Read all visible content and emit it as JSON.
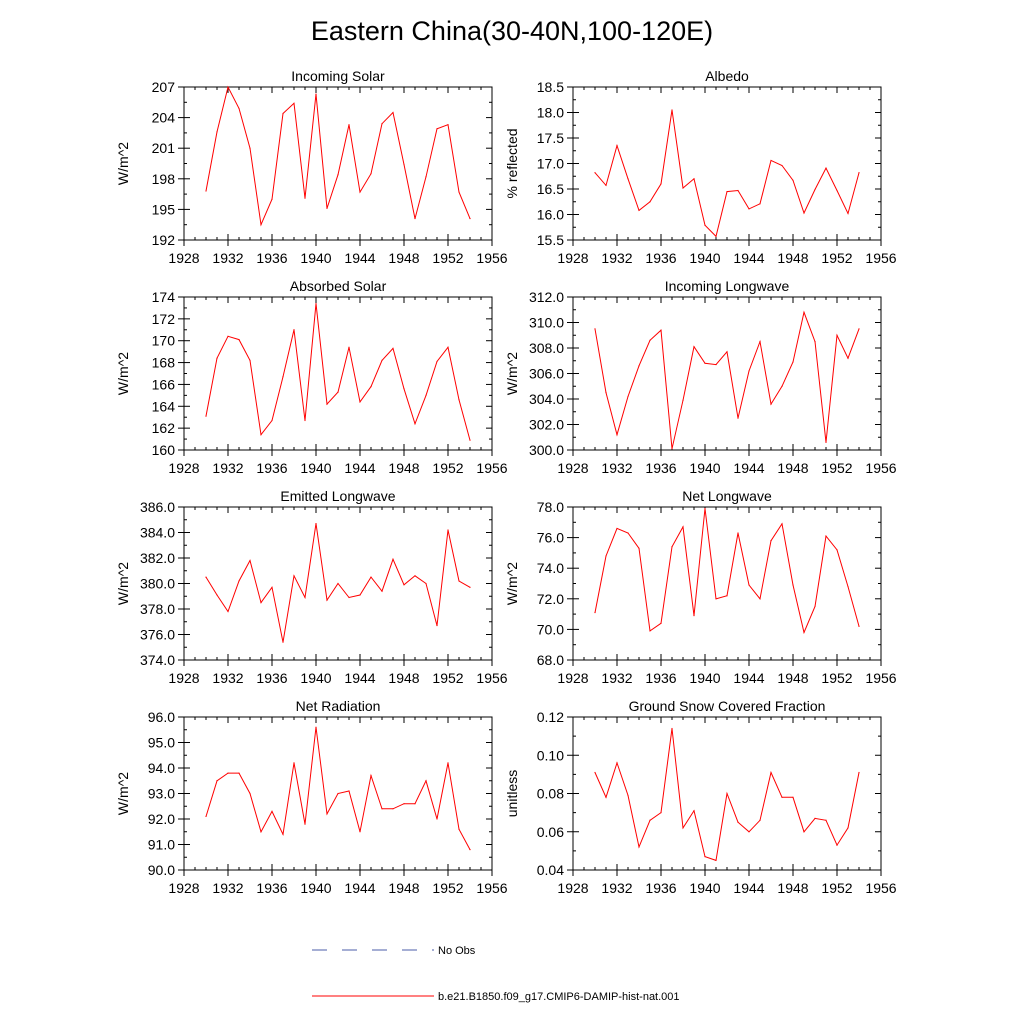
{
  "figure": {
    "title": "Eastern China(30-40N,100-120E)"
  },
  "legend": [
    {
      "label": "No Obs",
      "color": "#4b5ea8",
      "dash": true
    },
    {
      "label": "b.e21.B1850.f09_g17.CMIP6-DAMIP-hist-nat.001",
      "color": "#ff0000",
      "dash": false
    }
  ],
  "chart_data": [
    {
      "type": "line",
      "title": "Incoming Solar",
      "ylabel": "W/m^2",
      "xlim": [
        1928,
        1956
      ],
      "xticks": [
        1928,
        1932,
        1936,
        1940,
        1944,
        1948,
        1952,
        1956
      ],
      "ylim": [
        192,
        207
      ],
      "yticks": [
        192,
        195,
        198,
        201,
        204,
        207
      ],
      "ydec": 0,
      "series": [
        {
          "color": "#ff0000",
          "x": [
            1930,
            1931,
            1932,
            1933,
            1934,
            1935,
            1936,
            1937,
            1938,
            1939,
            1940,
            1941,
            1942,
            1943,
            1944,
            1945,
            1946,
            1947,
            1948,
            1949,
            1950,
            1951,
            1952,
            1953,
            1954
          ],
          "y": [
            196.8,
            202.6,
            207.0,
            204.9,
            201.0,
            193.5,
            196.0,
            204.4,
            205.4,
            196.1,
            206.3,
            195.1,
            198.4,
            203.3,
            196.7,
            198.5,
            203.4,
            204.5,
            199.4,
            194.1,
            198.2,
            202.9,
            203.3,
            196.7,
            194.1
          ]
        }
      ]
    },
    {
      "type": "line",
      "title": "Albedo",
      "ylabel": "% reflected",
      "xlim": [
        1928,
        1956
      ],
      "xticks": [
        1928,
        1932,
        1936,
        1940,
        1944,
        1948,
        1952,
        1956
      ],
      "ylim": [
        15.5,
        18.5
      ],
      "yticks": [
        15.5,
        16.0,
        16.5,
        17.0,
        17.5,
        18.0,
        18.5
      ],
      "ydec": 1,
      "series": [
        {
          "color": "#ff0000",
          "x": [
            1930,
            1931,
            1932,
            1933,
            1934,
            1935,
            1936,
            1937,
            1938,
            1939,
            1940,
            1941,
            1942,
            1943,
            1944,
            1945,
            1946,
            1947,
            1948,
            1949,
            1950,
            1951,
            1952,
            1953,
            1954
          ],
          "y": [
            16.82,
            16.57,
            17.35,
            16.7,
            16.08,
            16.25,
            16.6,
            18.05,
            16.52,
            16.7,
            15.79,
            15.57,
            16.45,
            16.47,
            16.11,
            16.21,
            17.06,
            16.96,
            16.67,
            16.03,
            16.49,
            16.91,
            16.47,
            16.02,
            16.82
          ]
        }
      ]
    },
    {
      "type": "line",
      "title": "Absorbed Solar",
      "ylabel": "W/m^2",
      "xlim": [
        1928,
        1956
      ],
      "xticks": [
        1928,
        1932,
        1936,
        1940,
        1944,
        1948,
        1952,
        1956
      ],
      "ylim": [
        160,
        174
      ],
      "yticks": [
        160,
        162,
        164,
        166,
        168,
        170,
        172,
        174
      ],
      "ydec": 0,
      "series": [
        {
          "color": "#ff0000",
          "x": [
            1930,
            1931,
            1932,
            1933,
            1934,
            1935,
            1936,
            1937,
            1938,
            1939,
            1940,
            1941,
            1942,
            1943,
            1944,
            1945,
            1946,
            1947,
            1948,
            1949,
            1950,
            1951,
            1952,
            1953,
            1954
          ],
          "y": [
            163.1,
            168.4,
            170.4,
            170.1,
            168.2,
            161.4,
            162.7,
            166.7,
            171.0,
            162.7,
            173.4,
            164.2,
            165.3,
            169.4,
            164.4,
            165.8,
            168.2,
            169.3,
            165.6,
            162.4,
            165.0,
            168.1,
            169.4,
            164.6,
            160.9
          ]
        }
      ]
    },
    {
      "type": "line",
      "title": "Incoming Longwave",
      "ylabel": "W/m^2",
      "xlim": [
        1928,
        1956
      ],
      "xticks": [
        1928,
        1932,
        1936,
        1940,
        1944,
        1948,
        1952,
        1956
      ],
      "ylim": [
        300,
        312
      ],
      "yticks": [
        300.0,
        302.0,
        304.0,
        306.0,
        308.0,
        310.0,
        312.0
      ],
      "ydec": 1,
      "series": [
        {
          "color": "#ff0000",
          "x": [
            1930,
            1931,
            1932,
            1933,
            1934,
            1935,
            1936,
            1937,
            1938,
            1939,
            1940,
            1941,
            1942,
            1943,
            1944,
            1945,
            1946,
            1947,
            1948,
            1949,
            1950,
            1951,
            1952,
            1953,
            1954
          ],
          "y": [
            309.5,
            304.5,
            301.2,
            304.2,
            306.6,
            308.6,
            309.4,
            300.1,
            303.9,
            308.1,
            306.8,
            306.7,
            307.7,
            302.5,
            306.2,
            308.5,
            303.6,
            305.0,
            306.9,
            310.8,
            308.5,
            300.6,
            309.0,
            307.2,
            309.5
          ]
        }
      ]
    },
    {
      "type": "line",
      "title": "Emitted Longwave",
      "ylabel": "W/m^2",
      "xlim": [
        1928,
        1956
      ],
      "xticks": [
        1928,
        1932,
        1936,
        1940,
        1944,
        1948,
        1952,
        1956
      ],
      "ylim": [
        374,
        386
      ],
      "yticks": [
        374.0,
        376.0,
        378.0,
        380.0,
        382.0,
        384.0,
        386.0
      ],
      "ydec": 1,
      "series": [
        {
          "color": "#ff0000",
          "x": [
            1930,
            1931,
            1932,
            1933,
            1934,
            1935,
            1936,
            1937,
            1938,
            1939,
            1940,
            1941,
            1942,
            1943,
            1944,
            1945,
            1946,
            1947,
            1948,
            1949,
            1950,
            1951,
            1952,
            1953,
            1954
          ],
          "y": [
            380.5,
            379.1,
            377.8,
            380.2,
            381.8,
            378.5,
            379.7,
            375.4,
            380.6,
            378.9,
            384.7,
            378.7,
            380.0,
            378.9,
            379.1,
            380.5,
            379.4,
            381.9,
            379.9,
            380.6,
            380.0,
            376.7,
            384.2,
            380.2,
            379.7
          ]
        }
      ]
    },
    {
      "type": "line",
      "title": "Net Longwave",
      "ylabel": "W/m^2",
      "xlim": [
        1928,
        1956
      ],
      "xticks": [
        1928,
        1932,
        1936,
        1940,
        1944,
        1948,
        1952,
        1956
      ],
      "ylim": [
        68,
        78
      ],
      "yticks": [
        68.0,
        70.0,
        72.0,
        74.0,
        76.0,
        78.0
      ],
      "ydec": 1,
      "series": [
        {
          "color": "#ff0000",
          "x": [
            1930,
            1931,
            1932,
            1933,
            1934,
            1935,
            1936,
            1937,
            1938,
            1939,
            1940,
            1941,
            1942,
            1943,
            1944,
            1945,
            1946,
            1947,
            1948,
            1949,
            1950,
            1951,
            1952,
            1953,
            1954
          ],
          "y": [
            71.1,
            74.8,
            76.6,
            76.3,
            75.3,
            69.9,
            70.4,
            75.4,
            76.7,
            70.9,
            77.9,
            72.0,
            72.2,
            76.3,
            72.9,
            72.0,
            75.8,
            76.9,
            72.9,
            69.8,
            71.5,
            76.1,
            75.2,
            72.8,
            70.2
          ]
        }
      ]
    },
    {
      "type": "line",
      "title": "Net Radiation",
      "ylabel": "W/m^2",
      "xlim": [
        1928,
        1956
      ],
      "xticks": [
        1928,
        1932,
        1936,
        1940,
        1944,
        1948,
        1952,
        1956
      ],
      "ylim": [
        90,
        96
      ],
      "yticks": [
        90.0,
        91.0,
        92.0,
        93.0,
        94.0,
        95.0,
        96.0
      ],
      "ydec": 1,
      "series": [
        {
          "color": "#ff0000",
          "x": [
            1930,
            1931,
            1932,
            1933,
            1934,
            1935,
            1936,
            1937,
            1938,
            1939,
            1940,
            1941,
            1942,
            1943,
            1944,
            1945,
            1946,
            1947,
            1948,
            1949,
            1950,
            1951,
            1952,
            1953,
            1954
          ],
          "y": [
            92.1,
            93.5,
            93.8,
            93.8,
            93.0,
            91.5,
            92.3,
            91.4,
            94.2,
            91.8,
            95.6,
            92.2,
            93.0,
            93.1,
            91.5,
            93.7,
            92.4,
            92.4,
            92.6,
            92.6,
            93.5,
            92.0,
            94.2,
            91.6,
            90.8
          ]
        }
      ]
    },
    {
      "type": "line",
      "title": "Ground Snow Covered Fraction",
      "ylabel": "unitless",
      "xlim": [
        1928,
        1956
      ],
      "xticks": [
        1928,
        1932,
        1936,
        1940,
        1944,
        1948,
        1952,
        1956
      ],
      "ylim": [
        0.04,
        0.12
      ],
      "yticks": [
        0.04,
        0.06,
        0.08,
        0.1,
        0.12
      ],
      "ydec": 2,
      "series": [
        {
          "color": "#ff0000",
          "x": [
            1930,
            1931,
            1932,
            1933,
            1934,
            1935,
            1936,
            1937,
            1938,
            1939,
            1940,
            1941,
            1942,
            1943,
            1944,
            1945,
            1946,
            1947,
            1948,
            1949,
            1950,
            1951,
            1952,
            1953,
            1954
          ],
          "y": [
            0.091,
            0.078,
            0.096,
            0.079,
            0.052,
            0.066,
            0.07,
            0.114,
            0.062,
            0.071,
            0.047,
            0.045,
            0.08,
            0.065,
            0.06,
            0.066,
            0.091,
            0.078,
            0.078,
            0.06,
            0.067,
            0.066,
            0.053,
            0.062,
            0.091
          ]
        }
      ]
    }
  ]
}
